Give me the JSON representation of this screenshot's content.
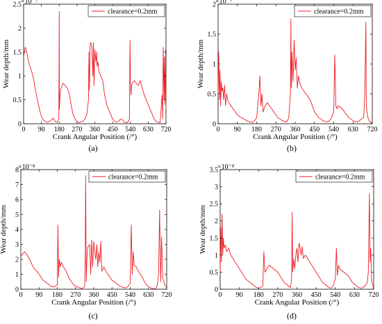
{
  "figure": {
    "panels": [
      {
        "caption": "(a)",
        "legend": "clearance=0.2mm",
        "scale": "×10⁻⁷"
      },
      {
        "caption": "(b)",
        "legend": "clearance=0.2mm",
        "scale": "×10⁻⁷"
      },
      {
        "caption": "(c)",
        "legend": "clearance=0.2mm",
        "scale": "×10⁻⁸"
      },
      {
        "caption": "(d)",
        "legend": "clearance=0.2mm",
        "scale": "×10⁻⁸"
      }
    ]
  },
  "colors": {
    "series": "#ee1c24",
    "axis": "#000000"
  },
  "chart_data": [
    {
      "type": "line",
      "title": "",
      "xlabel": "Crank Angular Position (/°)",
      "ylabel": "Wear depth/mm",
      "xlim": [
        0,
        720
      ],
      "ylim": [
        0,
        2.5
      ],
      "xticks": [
        0,
        90,
        180,
        270,
        360,
        450,
        540,
        630,
        720
      ],
      "yticks": [
        0,
        0.5,
        1,
        1.5,
        2,
        2.5
      ],
      "ytick_labels": [
        "0",
        "0.5",
        "1",
        "1.5",
        "2",
        "2.5"
      ],
      "y_multiplier": "1e-7",
      "legend": "top-right",
      "series": [
        {
          "name": "clearance=0.2mm",
          "x": [
            0,
            5,
            10,
            18,
            25,
            32,
            40,
            50,
            60,
            70,
            80,
            90,
            100,
            110,
            120,
            130,
            140,
            150,
            160,
            170,
            178,
            180,
            181,
            183,
            186,
            190,
            200,
            210,
            220,
            230,
            240,
            250,
            260,
            270,
            280,
            290,
            300,
            310,
            320,
            328,
            330,
            333,
            336,
            340,
            345,
            350,
            353,
            356,
            360,
            363,
            366,
            369,
            372,
            376,
            380,
            390,
            400,
            410,
            420,
            430,
            440,
            450,
            460,
            470,
            480,
            490,
            500,
            510,
            520,
            530,
            535,
            538,
            540,
            543,
            546,
            550,
            560,
            570,
            580,
            590,
            600,
            610,
            620,
            630,
            640,
            650,
            660,
            670,
            680,
            690,
            695,
            700,
            703,
            706,
            710,
            712,
            715,
            718,
            720
          ],
          "y": [
            1.4,
            1.55,
            1.6,
            1.45,
            1.3,
            1.2,
            1.1,
            0.95,
            0.7,
            0.5,
            0.3,
            0.15,
            0.08,
            0.05,
            0.03,
            0.05,
            0.08,
            0.12,
            0.05,
            0.03,
            0.1,
            2.35,
            0.3,
            0.5,
            0.7,
            0.75,
            0.85,
            0.8,
            0.75,
            0.65,
            0.4,
            0.2,
            0.1,
            0.05,
            0.02,
            0.04,
            0.05,
            0.1,
            0.2,
            0.5,
            1.5,
            0.7,
            1.65,
            1.7,
            1.6,
            1.0,
            1.7,
            0.8,
            1.55,
            1.4,
            1.3,
            1.5,
            1.2,
            1.3,
            1.1,
            1.0,
            0.9,
            0.6,
            0.4,
            0.3,
            0.2,
            0.1,
            0.05,
            0.03,
            0.05,
            0.1,
            0.08,
            0.03,
            0.02,
            0.05,
            0.1,
            1.75,
            0.9,
            0.6,
            0.8,
            0.85,
            0.9,
            0.85,
            0.8,
            0.9,
            0.75,
            0.6,
            0.5,
            0.4,
            0.3,
            0.2,
            0.1,
            0.05,
            0.03,
            0.02,
            0.3,
            0.6,
            0.1,
            1.6,
            0.5,
            1.4,
            0.4,
            1.55,
            0.3
          ]
        }
      ]
    },
    {
      "type": "line",
      "title": "",
      "xlabel": "Crank Angular Position (/°)",
      "ylabel": "Wear depth/mm",
      "xlim": [
        0,
        720
      ],
      "ylim": [
        0,
        2
      ],
      "xticks": [
        0,
        90,
        180,
        270,
        360,
        450,
        540,
        630,
        720
      ],
      "yticks": [
        0,
        0.5,
        1,
        1.5,
        2
      ],
      "ytick_labels": [
        "0",
        "0.5",
        "1",
        "1.5",
        "2"
      ],
      "y_multiplier": "1e-7",
      "legend": "top-right",
      "series": [
        {
          "name": "clearance=0.2mm",
          "x": [
            0,
            3,
            6,
            9,
            12,
            15,
            18,
            22,
            26,
            30,
            35,
            40,
            45,
            50,
            60,
            70,
            80,
            90,
            100,
            110,
            120,
            130,
            140,
            150,
            160,
            170,
            180,
            190,
            195,
            200,
            205,
            210,
            220,
            230,
            240,
            250,
            260,
            270,
            280,
            290,
            300,
            310,
            320,
            330,
            338,
            340,
            342,
            345,
            350,
            355,
            360,
            365,
            370,
            375,
            380,
            390,
            400,
            410,
            420,
            430,
            440,
            450,
            460,
            470,
            480,
            490,
            500,
            510,
            520,
            530,
            540,
            545,
            550,
            555,
            560,
            570,
            580,
            590,
            600,
            610,
            620,
            630,
            640,
            650,
            660,
            670,
            680,
            685,
            690,
            692,
            695,
            700,
            705,
            710,
            715,
            720
          ],
          "y": [
            0.5,
            1.2,
            0.4,
            0.9,
            0.3,
            0.7,
            0.55,
            0.6,
            0.4,
            0.65,
            0.3,
            0.5,
            0.4,
            0.35,
            0.3,
            0.25,
            0.2,
            0.15,
            0.12,
            0.1,
            0.08,
            0.06,
            0.04,
            0.03,
            0.02,
            0.05,
            0.1,
            0.5,
            0.8,
            0.3,
            0.5,
            0.2,
            0.3,
            0.35,
            0.3,
            0.25,
            0.2,
            0.15,
            0.1,
            0.08,
            0.05,
            0.04,
            0.03,
            0.1,
            0.5,
            1.75,
            0.6,
            1.2,
            0.7,
            1.4,
            0.9,
            1.1,
            0.6,
            0.8,
            0.7,
            0.6,
            0.55,
            0.5,
            0.45,
            0.4,
            0.3,
            0.2,
            0.15,
            0.1,
            0.08,
            0.05,
            0.04,
            0.03,
            0.05,
            0.1,
            0.2,
            1.15,
            0.3,
            0.25,
            0.3,
            0.28,
            0.25,
            0.2,
            0.15,
            0.1,
            0.08,
            0.05,
            0.04,
            0.03,
            0.05,
            0.08,
            0.1,
            0.5,
            1.7,
            0.3,
            0.2,
            0.1,
            0.05,
            0.03,
            0.02,
            0.01
          ]
        }
      ]
    },
    {
      "type": "line",
      "title": "",
      "xlabel": "Crank Angular Position (/°)",
      "ylabel": "Wear depth/mm",
      "xlim": [
        0,
        720
      ],
      "ylim": [
        0,
        8
      ],
      "xticks": [
        0,
        90,
        180,
        270,
        360,
        450,
        540,
        630,
        720
      ],
      "yticks": [
        0,
        1,
        2,
        3,
        4,
        5,
        6,
        7,
        8
      ],
      "ytick_labels": [
        "0",
        "1",
        "2",
        "3",
        "4",
        "5",
        "6",
        "7",
        "8"
      ],
      "y_multiplier": "1e-8",
      "legend": "top-right",
      "series": [
        {
          "name": "clearance=0.2mm",
          "x": [
            0,
            10,
            20,
            30,
            40,
            50,
            60,
            70,
            80,
            90,
            100,
            110,
            120,
            130,
            140,
            150,
            160,
            170,
            180,
            183,
            186,
            190,
            195,
            200,
            210,
            220,
            230,
            240,
            250,
            260,
            270,
            280,
            290,
            300,
            310,
            315,
            318,
            320,
            323,
            326,
            330,
            340,
            345,
            350,
            355,
            360,
            365,
            370,
            375,
            380,
            385,
            390,
            395,
            400,
            410,
            420,
            430,
            440,
            450,
            460,
            470,
            480,
            490,
            500,
            510,
            520,
            530,
            540,
            545,
            550,
            555,
            560,
            570,
            580,
            590,
            600,
            610,
            620,
            630,
            640,
            650,
            660,
            670,
            675,
            680,
            685,
            690,
            695,
            700,
            710,
            720
          ],
          "y": [
            2.2,
            2.4,
            2.5,
            2.3,
            2.1,
            1.8,
            1.5,
            1.3,
            1.2,
            1.0,
            0.8,
            0.6,
            0.5,
            0.4,
            0.3,
            0.2,
            0.15,
            0.2,
            0.3,
            4.3,
            0.8,
            2.0,
            1.5,
            1.8,
            1.5,
            1.3,
            1.0,
            0.7,
            0.5,
            0.3,
            0.2,
            0.15,
            0.1,
            0.05,
            0.1,
            0.2,
            2.5,
            7.6,
            0.5,
            2.0,
            2.8,
            3.0,
            1.0,
            3.3,
            1.5,
            3.2,
            2.5,
            2.0,
            3.0,
            1.5,
            2.5,
            1.8,
            3.2,
            1.2,
            1.5,
            1.2,
            1.0,
            0.8,
            0.6,
            0.5,
            0.4,
            0.3,
            0.2,
            0.15,
            0.1,
            0.1,
            0.2,
            0.4,
            4.3,
            1.0,
            2.5,
            1.6,
            1.5,
            1.2,
            1.0,
            0.8,
            0.5,
            0.3,
            0.2,
            0.1,
            0.05,
            0.03,
            0.1,
            0.4,
            1.0,
            5.3,
            0.5,
            3.5,
            0.8,
            0.3,
            0.1
          ]
        }
      ]
    },
    {
      "type": "line",
      "title": "",
      "xlabel": "Crank Angular Position (/°)",
      "ylabel": "Wear depth/mm",
      "xlim": [
        0,
        720
      ],
      "ylim": [
        0,
        3.5
      ],
      "xticks": [
        0,
        90,
        180,
        270,
        360,
        450,
        540,
        630,
        720
      ],
      "yticks": [
        0,
        0.5,
        1,
        1.5,
        2,
        2.5,
        3,
        3.5
      ],
      "ytick_labels": [
        "0",
        "0.5",
        "1",
        "1.5",
        "2",
        "2.5",
        "3",
        "3.5"
      ],
      "y_multiplier": "1e-8",
      "legend": "top-right",
      "series": [
        {
          "name": "clearance=0.2mm",
          "x": [
            0,
            3,
            6,
            9,
            12,
            15,
            18,
            25,
            30,
            40,
            50,
            60,
            70,
            80,
            90,
            100,
            110,
            120,
            130,
            140,
            150,
            160,
            170,
            180,
            190,
            200,
            205,
            210,
            220,
            230,
            240,
            250,
            260,
            270,
            280,
            290,
            300,
            310,
            320,
            330,
            335,
            338,
            340,
            345,
            350,
            355,
            360,
            365,
            370,
            375,
            380,
            385,
            390,
            400,
            410,
            420,
            430,
            440,
            450,
            460,
            470,
            480,
            490,
            500,
            510,
            520,
            530,
            540,
            545,
            550,
            555,
            560,
            570,
            580,
            590,
            600,
            610,
            620,
            630,
            640,
            650,
            660,
            670,
            680,
            690,
            695,
            700,
            703,
            706,
            710,
            715,
            720
          ],
          "y": [
            0.5,
            1.8,
            0.8,
            2.2,
            1.0,
            1.5,
            1.2,
            1.3,
            1.1,
            1.2,
            1.0,
            0.9,
            0.8,
            0.7,
            0.6,
            0.5,
            0.4,
            0.3,
            0.25,
            0.2,
            0.15,
            0.1,
            0.05,
            0.03,
            0.05,
            0.1,
            1.1,
            0.5,
            0.6,
            0.7,
            0.65,
            0.6,
            0.55,
            0.5,
            0.4,
            0.3,
            0.2,
            0.15,
            0.1,
            0.05,
            0.3,
            2.25,
            0.5,
            0.9,
            0.6,
            1.0,
            1.2,
            0.8,
            1.35,
            1.2,
            1.0,
            1.25,
            0.9,
            1.0,
            0.9,
            0.8,
            0.7,
            0.6,
            0.5,
            0.4,
            0.3,
            0.2,
            0.15,
            0.1,
            0.05,
            0.03,
            0.1,
            0.3,
            1.2,
            0.4,
            0.7,
            0.6,
            0.55,
            0.5,
            0.45,
            0.4,
            0.3,
            0.2,
            0.15,
            0.1,
            0.05,
            0.03,
            0.05,
            0.1,
            0.2,
            0.5,
            2.8,
            0.8,
            1.2,
            0.3,
            0.1,
            0.05
          ]
        }
      ]
    }
  ]
}
